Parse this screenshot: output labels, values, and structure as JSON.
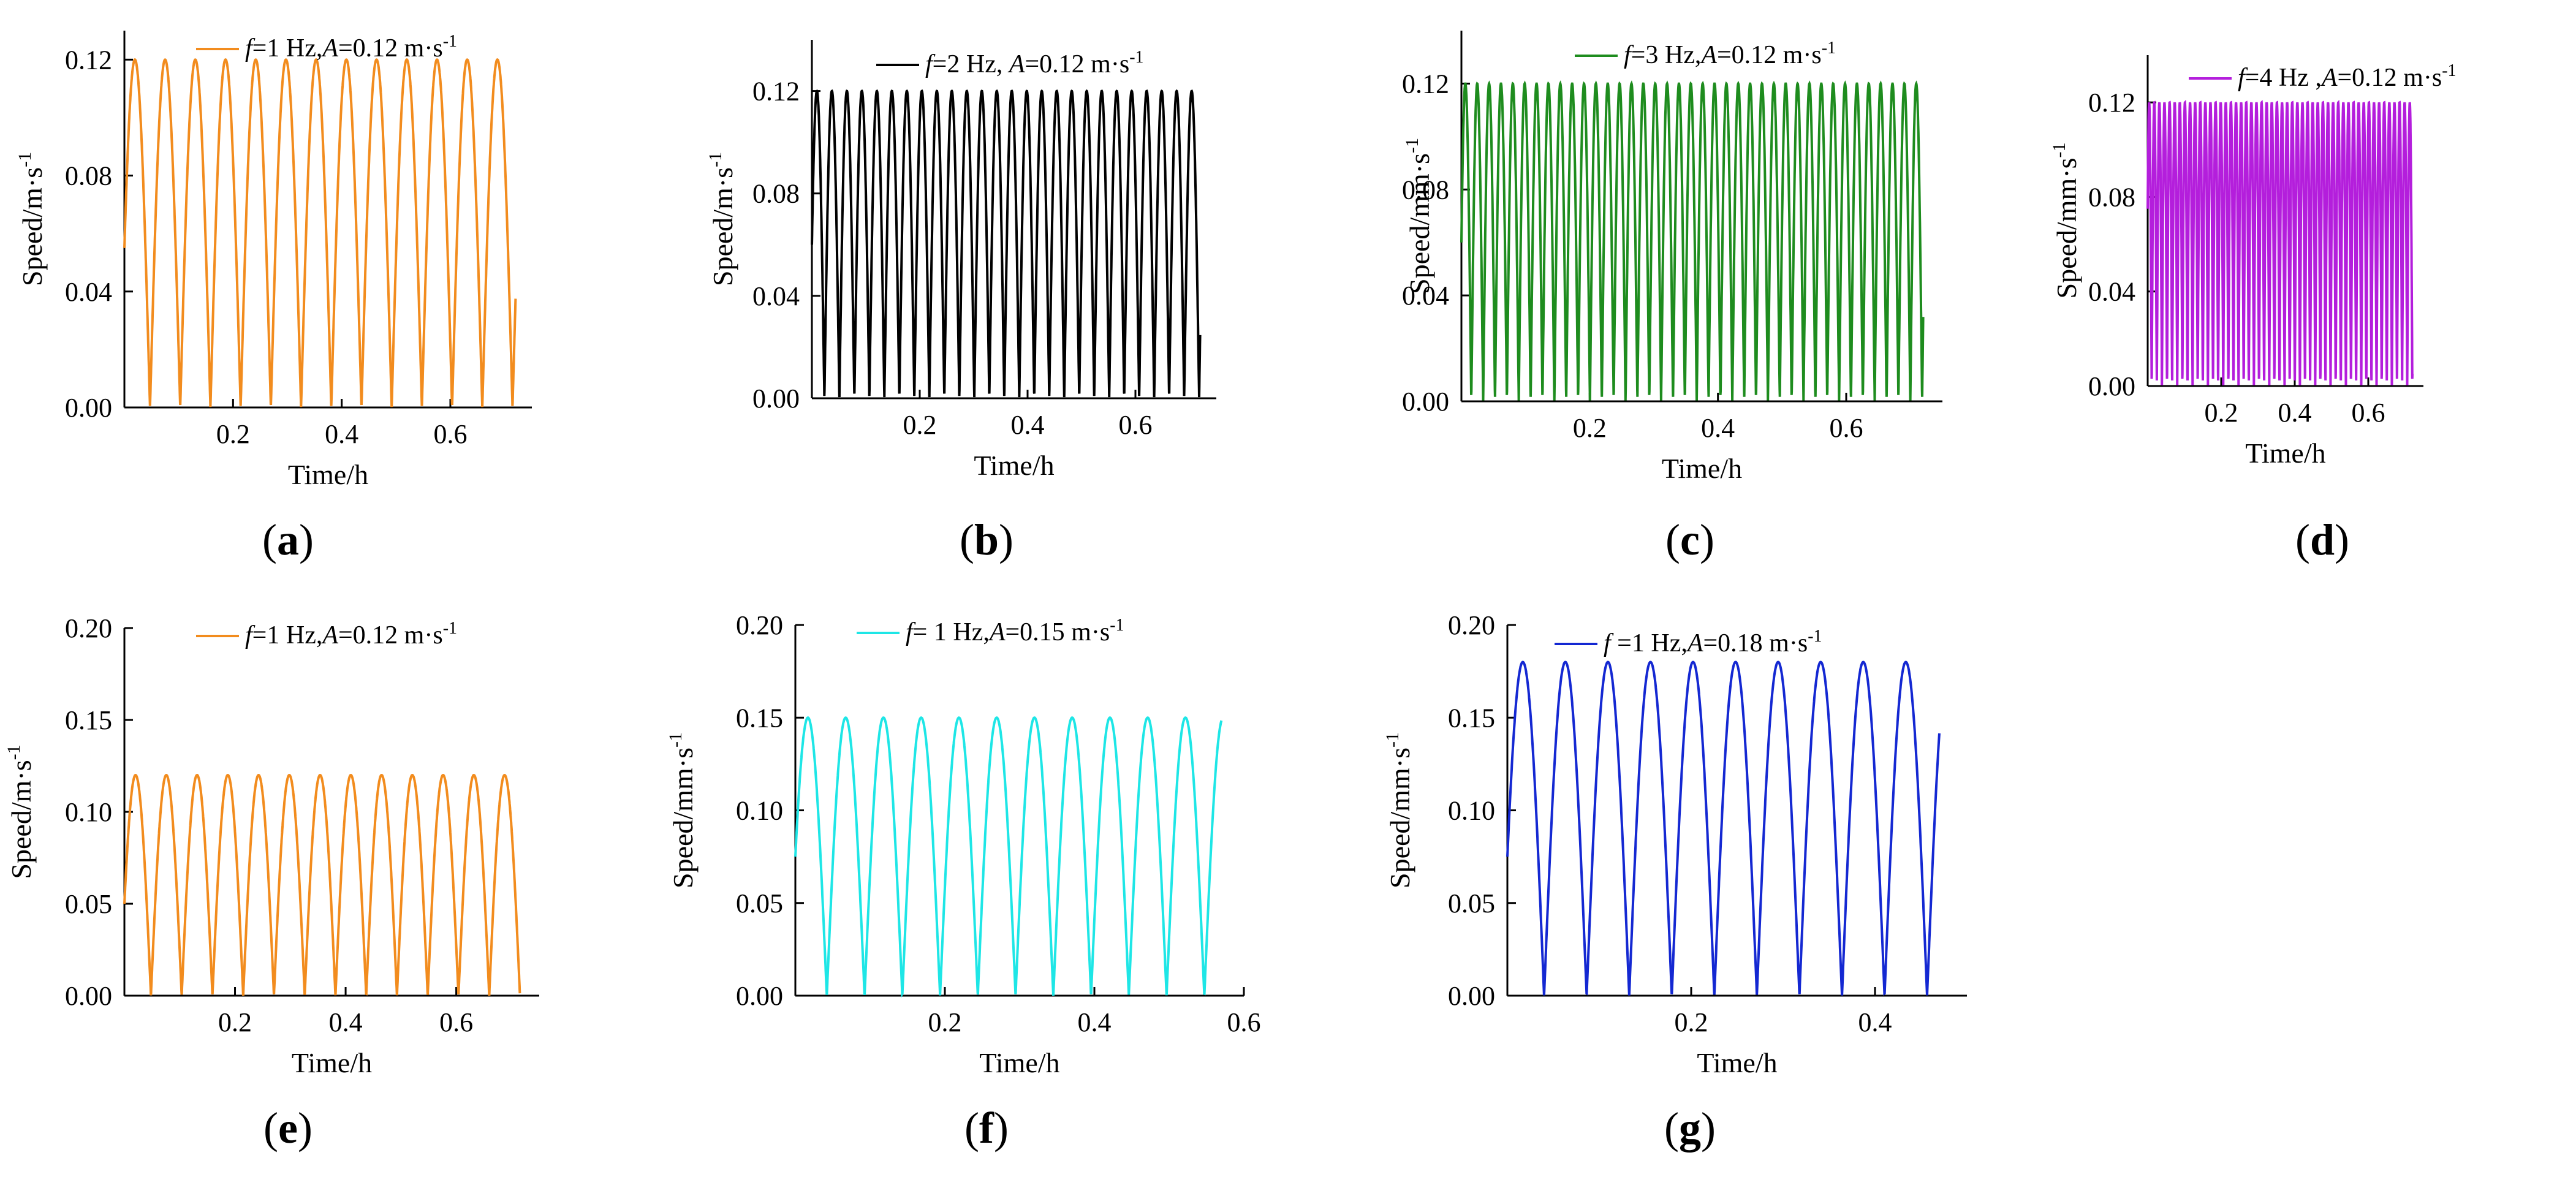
{
  "chart_data": [
    {
      "type": "line",
      "panel": "a",
      "panel_label": "(a)",
      "xlabel": "Time/h",
      "ylabel": "Speed/m·s",
      "ylabel_sup": "-1",
      "xlim": [
        0,
        0.75
      ],
      "ylim": [
        0,
        0.13
      ],
      "xticks": [
        0.2,
        0.4,
        0.6
      ],
      "xtick_labels": [
        "0.2",
        "0.4",
        "0.6"
      ],
      "yticks": [
        0.0,
        0.04,
        0.08,
        0.12
      ],
      "ytick_labels": [
        "0.00",
        "0.04",
        "0.08",
        "0.12"
      ],
      "series": [
        {
          "name_f": "f",
          "name_f_val": "=1 Hz,",
          "name_a": "A",
          "name_a_val": "=0.12 m·s",
          "name_sup": "-1",
          "color": "#F28C1E",
          "frequency": 1,
          "amplitude": 0.12,
          "t_end": 0.72,
          "period_h": 0.0556,
          "phase_start_y": 0.055
        }
      ]
    },
    {
      "type": "line",
      "panel": "b",
      "panel_label": "(b)",
      "xlabel": "Time/h",
      "ylabel": "Speed/m·s",
      "ylabel_sup": "-1",
      "xlim": [
        0,
        0.75
      ],
      "ylim": [
        0,
        0.14
      ],
      "xticks": [
        0.2,
        0.4,
        0.6
      ],
      "xtick_labels": [
        "0.2",
        "0.4",
        "0.6"
      ],
      "yticks": [
        0.0,
        0.04,
        0.08,
        0.12
      ],
      "ytick_labels": [
        "0.00",
        "0.04",
        "0.08",
        "0.12"
      ],
      "series": [
        {
          "name_f": "f",
          "name_f_val": "=2 Hz, ",
          "name_a": "A",
          "name_a_val": "=0.12 m·s",
          "name_sup": "-1",
          "color": "#000000",
          "frequency": 2,
          "amplitude": 0.12,
          "t_end": 0.72,
          "period_h": 0.0278,
          "phase_start_y": 0.06
        }
      ]
    },
    {
      "type": "line",
      "panel": "c",
      "panel_label": "(c)",
      "xlabel": "Time/h",
      "ylabel": "Speed/mm·s",
      "ylabel_sup": "-1",
      "xlim": [
        0,
        0.75
      ],
      "ylim": [
        0,
        0.14
      ],
      "xticks": [
        0.2,
        0.4,
        0.6
      ],
      "xtick_labels": [
        "0.2",
        "0.4",
        "0.6"
      ],
      "yticks": [
        0.0,
        0.04,
        0.08,
        0.12
      ],
      "ytick_labels": [
        "0.00",
        "0.04",
        "0.08",
        "0.12"
      ],
      "series": [
        {
          "name_f": "f",
          "name_f_val": "=3 Hz,",
          "name_a": "A",
          "name_a_val": "=0.12 m·s",
          "name_sup": "-1",
          "color": "#1E8C1E",
          "frequency": 3,
          "amplitude": 0.12,
          "t_end": 0.72,
          "period_h": 0.0185,
          "phase_start_y": 0.06
        }
      ]
    },
    {
      "type": "line",
      "panel": "d",
      "panel_label": "(d)",
      "xlabel": "Time/h",
      "ylabel": "Speed/mm·s",
      "ylabel_sup": "-1",
      "xlim": [
        0,
        0.75
      ],
      "ylim": [
        0,
        0.14
      ],
      "xticks": [
        0.2,
        0.4,
        0.6
      ],
      "xtick_labels": [
        "0.2",
        "0.4",
        "0.6"
      ],
      "yticks": [
        0.0,
        0.04,
        0.08,
        0.12
      ],
      "ytick_labels": [
        "0.00",
        "0.04",
        "0.08",
        "0.12"
      ],
      "series": [
        {
          "name_f": "f",
          "name_f_val": "=4 Hz ,",
          "name_a": "A",
          "name_a_val": "=0.12 m·s",
          "name_sup": "-1",
          "color": "#B41EDC",
          "frequency": 4,
          "amplitude": 0.12,
          "t_end": 0.72,
          "period_h": 0.0139,
          "phase_start_y": 0.075
        }
      ]
    },
    {
      "type": "line",
      "panel": "e",
      "panel_label": "(e)",
      "xlabel": "Time/h",
      "ylabel": "Speed/m·s",
      "ylabel_sup": "-1",
      "xlim": [
        0,
        0.75
      ],
      "ylim": [
        0,
        0.2
      ],
      "xticks": [
        0.2,
        0.4,
        0.6
      ],
      "xtick_labels": [
        "0.2",
        "0.4",
        "0.6"
      ],
      "yticks": [
        0.0,
        0.05,
        0.1,
        0.15,
        0.2
      ],
      "ytick_labels": [
        "0.00",
        "0.05",
        "0.10",
        "0.15",
        "0.20"
      ],
      "series": [
        {
          "name_f": "f",
          "name_f_val": "=1 Hz,",
          "name_a": "A",
          "name_a_val": "=0.12 m·s",
          "name_sup": "-1",
          "color": "#F28C1E",
          "frequency": 1,
          "amplitude": 0.12,
          "t_end": 0.715,
          "period_h": 0.0556,
          "phase_start_y": 0.05
        }
      ]
    },
    {
      "type": "line",
      "panel": "f",
      "panel_label": "(f)",
      "xlabel": "Time/h",
      "ylabel": "Speed/mm·s",
      "ylabel_sup": "-1",
      "xlim": [
        0,
        0.6
      ],
      "ylim": [
        0,
        0.2
      ],
      "xticks": [
        0.2,
        0.4,
        0.6
      ],
      "xtick_labels": [
        "0.2",
        "0.4",
        "0.6"
      ],
      "yticks": [
        0.0,
        0.05,
        0.1,
        0.15,
        0.2
      ],
      "ytick_labels": [
        "0.00",
        "0.05",
        "0.10",
        "0.15",
        "0.20"
      ],
      "series": [
        {
          "name_f": "f",
          "name_f_val": "= 1 Hz,",
          "name_a": "A",
          "name_a_val": "=0.15 m·s",
          "name_sup": "-1",
          "color": "#1EE6E6",
          "frequency": 1,
          "amplitude": 0.15,
          "t_end": 0.57,
          "period_h": 0.0505,
          "phase_start_y": 0.075
        }
      ]
    },
    {
      "type": "line",
      "panel": "g",
      "panel_label": "(g)",
      "xlabel": "Time/h",
      "ylabel": "Speed/mm·s",
      "ylabel_sup": "-1",
      "xlim": [
        0,
        0.5
      ],
      "ylim": [
        0,
        0.2
      ],
      "xticks": [
        0.2,
        0.4
      ],
      "xtick_labels": [
        "0.2",
        "0.4"
      ],
      "yticks": [
        0.0,
        0.05,
        0.1,
        0.15,
        0.2
      ],
      "ytick_labels": [
        "0.00",
        "0.05",
        "0.10",
        "0.15",
        "0.20"
      ],
      "series": [
        {
          "name_f": "f",
          "name_f_val": " =1 Hz,",
          "name_a": "A",
          "name_a_val": "=0.18 m·s",
          "name_sup": "-1",
          "color": "#1428D2",
          "frequency": 1,
          "amplitude": 0.18,
          "t_end": 0.47,
          "period_h": 0.0463,
          "phase_start_y": 0.075
        }
      ]
    }
  ]
}
